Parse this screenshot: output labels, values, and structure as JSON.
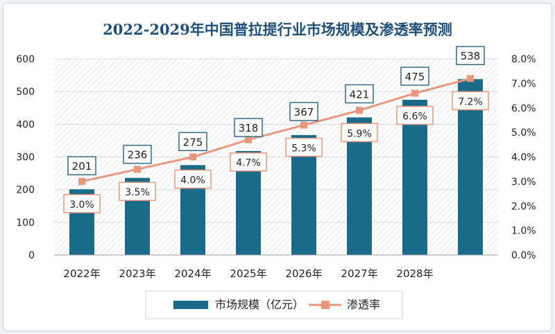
{
  "chart_data": {
    "type": "bar+line",
    "title": "2022-2029年中国普拉提行业市场规模及渗透率预测",
    "categories": [
      "2022年",
      "2023年",
      "2024年",
      "2025年",
      "2026年",
      "2027年",
      "2028年",
      ""
    ],
    "series": [
      {
        "name": "市场规模（亿元）",
        "type": "bar",
        "axis": "left",
        "values": [
          201,
          236,
          275,
          318,
          367,
          421,
          475,
          538
        ]
      },
      {
        "name": "渗透率",
        "type": "line",
        "axis": "right",
        "values": [
          3.0,
          3.5,
          4.0,
          4.7,
          5.3,
          5.9,
          6.6,
          7.2
        ]
      }
    ],
    "bar_labels": [
      "201",
      "236",
      "275",
      "318",
      "367",
      "421",
      "475",
      "538"
    ],
    "line_labels": [
      "3.0%",
      "3.5%",
      "4.0%",
      "4.7%",
      "5.3%",
      "5.9%",
      "6.6%",
      "7.2%"
    ],
    "y_left": {
      "min": 0,
      "max": 600,
      "ticks": [
        "0",
        "100",
        "200",
        "300",
        "400",
        "500",
        "600"
      ]
    },
    "y_right": {
      "min": 0,
      "max": 8,
      "ticks": [
        "0.0%",
        "1.0%",
        "2.0%",
        "3.0%",
        "4.0%",
        "5.0%",
        "6.0%",
        "7.0%",
        "8.0%"
      ]
    },
    "colors": {
      "bar": "#1a6b8a",
      "line": "#e8967c",
      "label_box": "#2e6b8e",
      "title": "#1e4f7a"
    },
    "legend_position": "bottom"
  }
}
